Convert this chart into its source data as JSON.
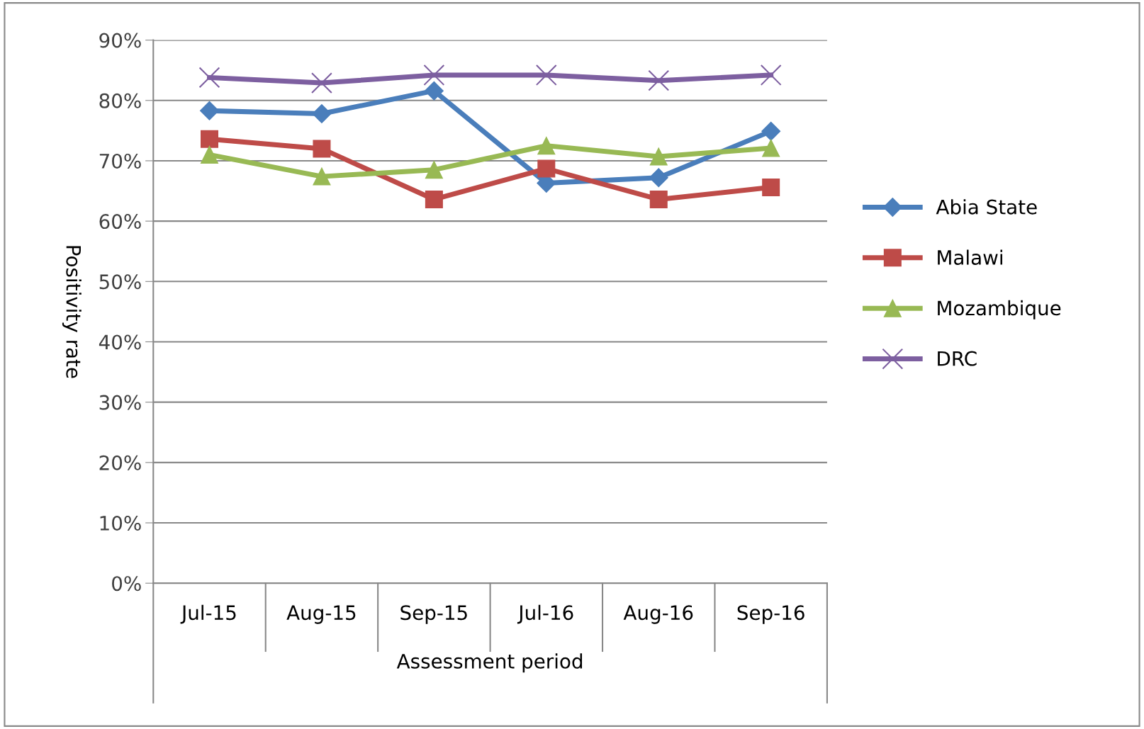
{
  "chart_data": {
    "type": "line",
    "xlabel": "Assessment period",
    "ylabel": "Positivity rate",
    "categories": [
      "Jul-15",
      "Aug-15",
      "Sep-15",
      "Jul-16",
      "Aug-16",
      "Sep-16"
    ],
    "series": [
      {
        "name": "Abia State",
        "color": "#4a7ebb",
        "marker": "diamond",
        "values": [
          78.3,
          77.8,
          81.6,
          66.3,
          67.2,
          74.9
        ]
      },
      {
        "name": "Malawi",
        "color": "#be4b48",
        "marker": "square",
        "values": [
          73.6,
          72.0,
          63.6,
          68.7,
          63.6,
          65.6
        ]
      },
      {
        "name": "Mozambique",
        "color": "#98b954",
        "marker": "triangle",
        "values": [
          71.0,
          67.4,
          68.5,
          72.5,
          70.7,
          72.1
        ]
      },
      {
        "name": "DRC",
        "color": "#7d5fa0",
        "marker": "cross",
        "values": [
          83.8,
          82.9,
          84.2,
          84.2,
          83.3,
          84.2
        ]
      }
    ],
    "ylim": [
      0,
      90
    ],
    "yticks": [
      {
        "value": 0,
        "label": "0%"
      },
      {
        "value": 10,
        "label": "10%"
      },
      {
        "value": 20,
        "label": "20%"
      },
      {
        "value": 30,
        "label": "30%"
      },
      {
        "value": 40,
        "label": "40%"
      },
      {
        "value": 50,
        "label": "50%"
      },
      {
        "value": 60,
        "label": "60%"
      },
      {
        "value": 70,
        "label": "70%"
      },
      {
        "value": 80,
        "label": "80%"
      },
      {
        "value": 90,
        "label": "90%"
      }
    ],
    "grid": "y",
    "legend": "right",
    "line_style": "solid"
  }
}
